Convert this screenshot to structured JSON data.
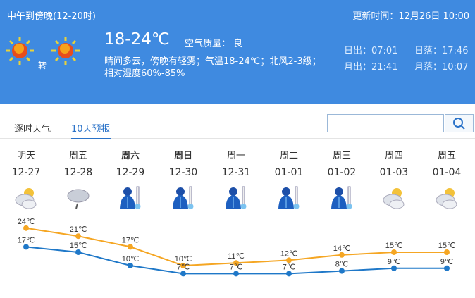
{
  "header": {
    "period": "中午到傍晚(12-20时)",
    "update_time": "更新时间：12月26日 10:00",
    "temp": "18-24℃",
    "air_quality": "空气质量： 良",
    "transition": "转",
    "desc_line1": "晴间多云，傍晚有轻雾；气温18-24℃；北风2-3级；",
    "desc_line2": "相对湿度60%-85%",
    "sunrise": "日出：07:01",
    "sunset": "日落：17:46",
    "moonrise": "月出：21:41",
    "moonset": "月落：10:07",
    "icons": [
      "sunny-icon",
      "sunny-icon"
    ]
  },
  "tabs": [
    {
      "label": "逐时天气"
    },
    {
      "label": "10天预报",
      "active": true
    }
  ],
  "search": {
    "placeholder": "",
    "value": ""
  },
  "forecast": [
    {
      "day": "明天",
      "date": "12-27",
      "icon": "partly-cloudy-icon",
      "high": 24,
      "low": 17,
      "high_label": "24℃",
      "low_label": "17℃"
    },
    {
      "day": "周五",
      "date": "12-28",
      "icon": "light-rain-icon",
      "high": 21,
      "low": 15,
      "high_label": "21℃",
      "low_label": "15℃"
    },
    {
      "day": "周六",
      "date": "12-29",
      "icon": "cold-icon",
      "high": 17,
      "low": 10,
      "high_label": "17℃",
      "low_label": "10℃",
      "bold": true
    },
    {
      "day": "周日",
      "date": "12-30",
      "icon": "cold-icon",
      "high": 10,
      "low": 7,
      "high_label": "10℃",
      "low_label": "7℃",
      "bold": true
    },
    {
      "day": "周一",
      "date": "12-31",
      "icon": "cold-icon",
      "high": 11,
      "low": 7,
      "high_label": "11℃",
      "low_label": "7℃"
    },
    {
      "day": "周二",
      "date": "01-01",
      "icon": "cold-icon",
      "high": 12,
      "low": 7,
      "high_label": "12℃",
      "low_label": "7℃"
    },
    {
      "day": "周三",
      "date": "01-02",
      "icon": "cold-icon",
      "high": 14,
      "low": 8,
      "high_label": "14℃",
      "low_label": "8℃"
    },
    {
      "day": "周四",
      "date": "01-03",
      "icon": "partly-cloudy-icon",
      "high": 15,
      "low": 9,
      "high_label": "15℃",
      "low_label": "9℃"
    },
    {
      "day": "周五",
      "date": "01-04",
      "icon": "partly-cloudy-icon",
      "high": 15,
      "low": 9,
      "high_label": "15℃",
      "low_label": "9℃"
    }
  ],
  "colors": {
    "header_bg": "#3f8ae0",
    "high_line": "#f5a623",
    "low_line": "#1f78c8"
  }
}
